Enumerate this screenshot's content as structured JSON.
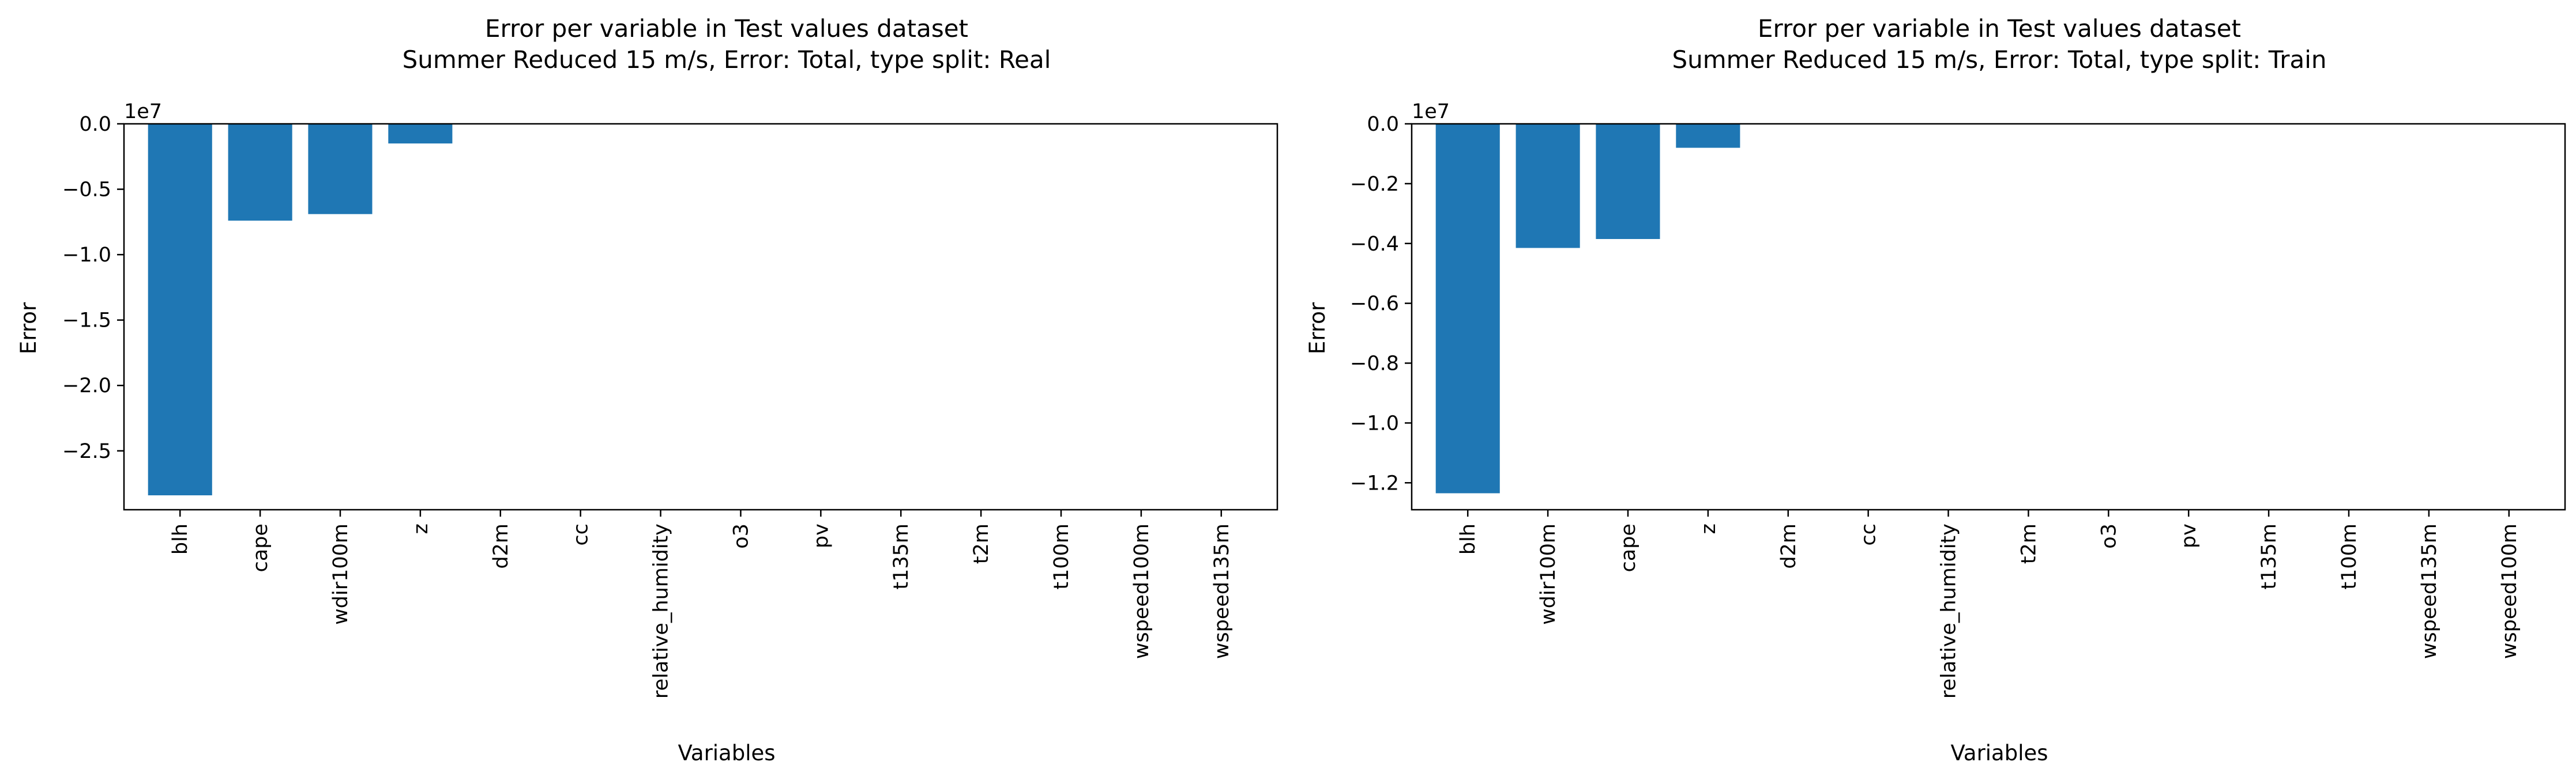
{
  "chart_data": [
    {
      "type": "bar",
      "title": "Error per variable in Test values dataset",
      "subtitle": "Summer Reduced 15 m/s, Error: Total, type split: Real",
      "xlabel": "Variables",
      "ylabel": "Error",
      "y_offset_label": "1e7",
      "y_scale": 10000000,
      "ylim": [
        -2.95,
        0.0
      ],
      "yticks": [
        0.0,
        -0.5,
        -1.0,
        -1.5,
        -2.0,
        -2.5
      ],
      "ytick_labels": [
        "0.0",
        "−0.5",
        "−1.0",
        "−1.5",
        "−2.0",
        "−2.5"
      ],
      "categories": [
        "blh",
        "cape",
        "wdir100m",
        "z",
        "d2m",
        "cc",
        "relative_humidity",
        "o3",
        "pv",
        "t135m",
        "t2m",
        "t100m",
        "wspeed100m",
        "wspeed135m"
      ],
      "values": [
        -2.84,
        -0.74,
        -0.69,
        -0.15,
        0,
        0,
        0,
        0,
        0,
        0,
        0,
        0,
        0,
        0
      ],
      "bar_color": "#1f77b4",
      "grid": false
    },
    {
      "type": "bar",
      "title": "Error per variable in Test values dataset",
      "subtitle": "Summer Reduced 15 m/s, Error: Total, type split: Train",
      "xlabel": "Variables",
      "ylabel": "Error",
      "y_offset_label": "1e7",
      "y_scale": 10000000,
      "ylim": [
        -1.29,
        0.0
      ],
      "yticks": [
        0.0,
        -0.2,
        -0.4,
        -0.6,
        -0.8,
        -1.0,
        -1.2
      ],
      "ytick_labels": [
        "0.0",
        "−0.2",
        "−0.4",
        "−0.6",
        "−0.8",
        "−1.0",
        "−1.2"
      ],
      "categories": [
        "blh",
        "wdir100m",
        "cape",
        "z",
        "d2m",
        "cc",
        "relative_humidity",
        "t2m",
        "o3",
        "pv",
        "t135m",
        "t100m",
        "wspeed135m",
        "wspeed100m"
      ],
      "values": [
        -1.235,
        -0.415,
        -0.385,
        -0.08,
        0,
        0,
        0,
        0,
        0,
        0,
        0,
        0,
        0,
        0
      ],
      "bar_color": "#1f77b4",
      "grid": false
    }
  ]
}
